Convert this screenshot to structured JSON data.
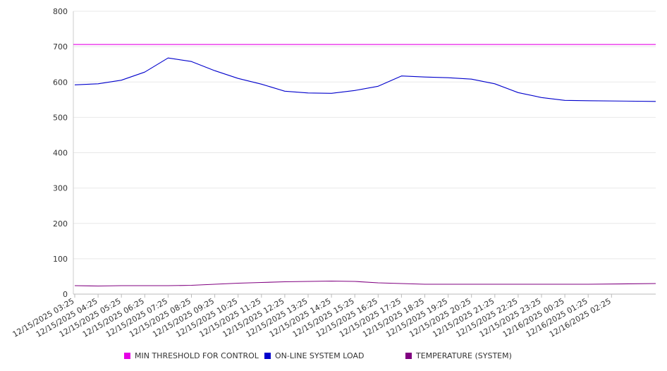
{
  "chart_data": {
    "type": "line",
    "title": "",
    "xlabel": "",
    "ylabel": "",
    "ylim": [
      0,
      800
    ],
    "yticks": [
      0,
      100,
      200,
      300,
      400,
      500,
      600,
      700,
      800
    ],
    "grid": true,
    "legend_position": "bottom",
    "x": [
      "12/15/2025 03:25",
      "12/15/2025 04:25",
      "12/15/2025 05:25",
      "12/15/2025 06:25",
      "12/15/2025 07:25",
      "12/15/2025 08:25",
      "12/15/2025 09:25",
      "12/15/2025 10:25",
      "12/15/2025 11:25",
      "12/15/2025 12:25",
      "12/15/2025 13:25",
      "12/15/2025 14:25",
      "12/15/2025 15:25",
      "12/15/2025 16:25",
      "12/15/2025 17:25",
      "12/15/2025 18:25",
      "12/15/2025 19:25",
      "12/15/2025 20:25",
      "12/15/2025 21:25",
      "12/15/2025 22:25",
      "12/15/2025 23:25",
      "12/16/2025 00:25",
      "12/16/2025 01:25",
      "12/16/2025 02:25"
    ],
    "series": [
      {
        "name": "MIN THRESHOLD FOR CONTROL",
        "color": "#e600e6",
        "values": [
          706,
          706,
          706,
          706,
          706,
          706,
          706,
          706,
          706,
          706,
          706,
          706,
          706,
          706,
          706,
          706,
          706,
          706,
          706,
          706,
          706,
          706,
          706,
          706
        ]
      },
      {
        "name": "ON-LINE SYSTEM LOAD",
        "color": "#0000cc",
        "values": [
          592,
          595,
          605,
          628,
          668,
          658,
          632,
          610,
          594,
          574,
          569,
          568,
          576,
          588,
          617,
          614,
          612,
          608,
          595,
          570,
          556,
          548,
          547,
          545
        ]
      },
      {
        "name": "TEMPERATURE (SYSTEM)",
        "color": "#800080",
        "values": [
          24,
          23,
          24,
          24,
          24,
          25,
          28,
          31,
          33,
          35,
          36,
          37,
          36,
          32,
          30,
          28,
          28,
          28,
          28,
          28,
          28,
          28,
          28,
          30
        ]
      }
    ]
  }
}
